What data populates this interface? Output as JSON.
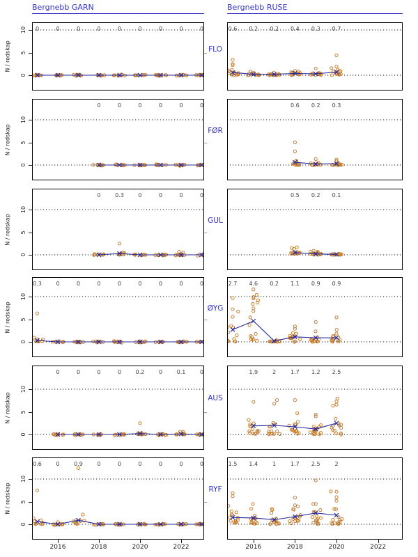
{
  "titles": {
    "left": "Bergnebb GARN",
    "right": "Bergnebb RUSE"
  },
  "axes": {
    "ylabel": "N / redskap",
    "yticks": [
      {
        "label": "0",
        "value": 0
      },
      {
        "label": "5",
        "value": 5
      },
      {
        "label": "10",
        "value": 10
      }
    ],
    "xticks": [
      {
        "label": "2016",
        "value": 2016
      },
      {
        "label": "2018",
        "value": 2018
      },
      {
        "label": "2020",
        "value": 2020
      },
      {
        "label": "2022",
        "value": 2022
      }
    ]
  },
  "colors": {
    "title_blue": "#3232c8",
    "series_blue": "#28289b",
    "point_orange": "#c87f2e",
    "grid_black": "#111111",
    "label_gray": "#3f3f3f",
    "axis_text": "#1f1f1f",
    "mini_tick_pink": "#bb85bb"
  },
  "chart_data": {
    "type": "scatter",
    "description": "Jittered catch-per-gear observations (orange open circles) with annual mean line and X markers (blue); the numbers along each panel top are the annual means.",
    "columns": [
      "GARN",
      "RUSE"
    ],
    "rows": [
      "FLO",
      "FØR",
      "GUL",
      "ØYG",
      "AUS",
      "RYF"
    ],
    "x_range_years": [
      2015,
      2023
    ],
    "y_reference_lines": [
      0,
      10
    ],
    "legend": "none",
    "panels": [
      {
        "id": "flo-garn",
        "row": "FLO",
        "col": "GARN",
        "years": [
          2015,
          2016,
          2017,
          2018,
          2019,
          2020,
          2021,
          2022,
          2023
        ],
        "labels": [
          "0",
          "0",
          "0",
          "0",
          "0",
          "0",
          "0",
          "0",
          "0"
        ],
        "means": [
          0,
          0,
          0,
          0,
          0,
          0,
          0,
          0,
          0
        ],
        "n_jitter": 9,
        "extra_points": []
      },
      {
        "id": "flo-ruse",
        "row": "FLO",
        "col": "RUSE",
        "years": [
          2015,
          2016,
          2017,
          2018,
          2019,
          2020
        ],
        "labels": [
          "0.6",
          "0.2",
          "0.2",
          "0.4",
          "0.3",
          "0.7"
        ],
        "means": [
          0.6,
          0.2,
          0.2,
          0.4,
          0.3,
          0.7
        ],
        "n_jitter": 13,
        "extra_points": [
          [
            2015,
            3.4
          ],
          [
            2015,
            2.5
          ],
          [
            2015,
            2.2
          ],
          [
            2019,
            1.5
          ],
          [
            2020,
            4.4
          ],
          [
            2020,
            1.9
          ]
        ]
      },
      {
        "id": "foer-garn",
        "row": "FØR",
        "col": "GARN",
        "years": [
          2018,
          2019,
          2020,
          2021,
          2022,
          2023
        ],
        "labels": [
          "0",
          "0",
          "0",
          "0",
          "0",
          "0"
        ],
        "means": [
          0,
          0,
          0,
          0,
          0,
          0
        ],
        "n_jitter": 9,
        "extra_points": []
      },
      {
        "id": "foer-ruse",
        "row": "FØR",
        "col": "RUSE",
        "years": [
          2018,
          2019,
          2020
        ],
        "labels": [
          "0.6",
          "0.2",
          "0.3"
        ],
        "means": [
          0.6,
          0.2,
          0.3
        ],
        "n_jitter": 12,
        "extra_points": [
          [
            2018,
            5
          ],
          [
            2018,
            3
          ],
          [
            2019,
            1.3
          ],
          [
            2020,
            1.2
          ],
          [
            2020,
            0.9
          ]
        ]
      },
      {
        "id": "gul-garn",
        "row": "GUL",
        "col": "GARN",
        "years": [
          2018,
          2019,
          2020,
          2021,
          2022,
          2023
        ],
        "labels": [
          "0",
          "0.3",
          "0",
          "0",
          "0",
          "0"
        ],
        "means": [
          0,
          0.3,
          0,
          0,
          0,
          0
        ],
        "n_jitter": 9,
        "extra_points": [
          [
            2019,
            2.5
          ],
          [
            2021.9,
            0.7
          ],
          [
            2022.1,
            0.5
          ]
        ]
      },
      {
        "id": "gul-ruse",
        "row": "GUL",
        "col": "RUSE",
        "years": [
          2018,
          2019,
          2020
        ],
        "labels": [
          "0.5",
          "0.2",
          "0.1"
        ],
        "means": [
          0.5,
          0.2,
          0.1
        ],
        "n_jitter": 12,
        "extra_points": [
          [
            2017.85,
            1.5
          ],
          [
            2017.95,
            1.3
          ],
          [
            2018.9,
            0.9
          ],
          [
            2019.1,
            0.7
          ]
        ]
      },
      {
        "id": "oeyg-garn",
        "row": "ØYG",
        "col": "GARN",
        "years": [
          2015,
          2016,
          2017,
          2018,
          2019,
          2020,
          2021,
          2022,
          2023
        ],
        "labels": [
          "0.3",
          "0",
          "0",
          "0",
          "0",
          "0",
          "0",
          "0",
          "0"
        ],
        "means": [
          0.3,
          0,
          0,
          0,
          0,
          0,
          0,
          0,
          0
        ],
        "n_jitter": 9,
        "extra_points": [
          [
            2015,
            6.3
          ],
          [
            2015,
            0.6
          ]
        ]
      },
      {
        "id": "oeyg-ruse",
        "row": "ØYG",
        "col": "RUSE",
        "years": [
          2015,
          2016,
          2017,
          2018,
          2019,
          2020
        ],
        "labels": [
          "2.7",
          "4.6",
          "0.2",
          "1.1",
          "0.9",
          "0.9"
        ],
        "means": [
          2.7,
          4.6,
          0.2,
          1.1,
          0.9,
          0.9
        ],
        "n_jitter": 13,
        "extra_points": [
          [
            2015,
            9.7
          ],
          [
            2015,
            7.2
          ],
          [
            2016,
            11.6
          ],
          [
            2016,
            9.9
          ],
          [
            2016,
            9.6
          ],
          [
            2016,
            7.4
          ],
          [
            2016,
            6.8
          ],
          [
            2018,
            3.4
          ],
          [
            2018,
            2.9
          ],
          [
            2019,
            4.4
          ],
          [
            2020,
            5.4
          ]
        ]
      },
      {
        "id": "aus-garn",
        "row": "AUS",
        "col": "GARN",
        "years": [
          2016,
          2017,
          2018,
          2019,
          2020,
          2021,
          2022,
          2023
        ],
        "labels": [
          "0",
          "0",
          "0",
          "0",
          "0.2",
          "0",
          "0.1",
          "0"
        ],
        "means": [
          0,
          0,
          0,
          0,
          0.2,
          0,
          0.1,
          0
        ],
        "n_jitter": 9,
        "extra_points": [
          [
            2020,
            2.5
          ],
          [
            2021.95,
            0.6
          ],
          [
            2022.1,
            0.55
          ]
        ]
      },
      {
        "id": "aus-ruse",
        "row": "AUS",
        "col": "RUSE",
        "years": [
          2016,
          2017,
          2018,
          2019,
          2020
        ],
        "labels": [
          "1.9",
          "2",
          "1.7",
          "1.2",
          "2.5"
        ],
        "means": [
          1.9,
          2,
          1.7,
          1.2,
          2.5
        ],
        "n_jitter": 14,
        "extra_points": [
          [
            2016,
            7.2
          ],
          [
            2017,
            6.8
          ],
          [
            2018,
            7.6
          ],
          [
            2019,
            4.4
          ],
          [
            2019,
            4
          ],
          [
            2020,
            7.3
          ],
          [
            2020,
            6.6
          ]
        ]
      },
      {
        "id": "ryf-garn",
        "row": "RYF",
        "col": "GARN",
        "years": [
          2015,
          2016,
          2017,
          2018,
          2019,
          2020,
          2021,
          2022,
          2023
        ],
        "labels": [
          "0.6",
          "0",
          "0.9",
          "0",
          "0",
          "0",
          "0",
          "0",
          "0"
        ],
        "means": [
          0.6,
          0,
          0.9,
          0,
          0,
          0,
          0,
          0,
          0
        ],
        "n_jitter": 9,
        "extra_points": [
          [
            2015,
            7.5
          ],
          [
            2016,
            0.5
          ],
          [
            2017,
            12.4
          ]
        ]
      },
      {
        "id": "ryf-ruse",
        "row": "RYF",
        "col": "RUSE",
        "years": [
          2015,
          2016,
          2017,
          2018,
          2019,
          2020
        ],
        "labels": [
          "1.5",
          "1.4",
          "1",
          "1.7",
          "2.5",
          "2"
        ],
        "means": [
          1.5,
          1.4,
          1,
          1.7,
          2.5,
          2
        ],
        "n_jitter": 14,
        "extra_points": [
          [
            2015,
            6.9
          ],
          [
            2015,
            6.2
          ],
          [
            2018,
            5.9
          ],
          [
            2018,
            4.2
          ],
          [
            2019,
            9.7
          ],
          [
            2019,
            4.5
          ],
          [
            2020,
            7.2
          ],
          [
            2020,
            6
          ],
          [
            2020,
            5.2
          ]
        ]
      }
    ]
  }
}
